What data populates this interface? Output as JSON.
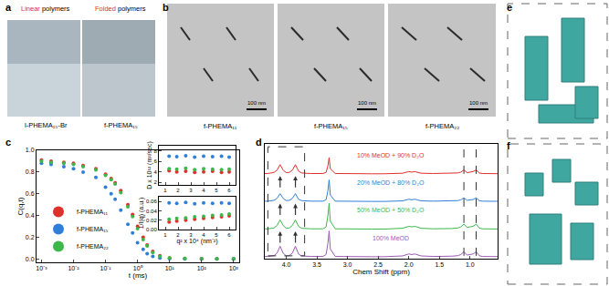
{
  "panel_labels": [
    "a",
    "b",
    "c",
    "d",
    "e",
    "f"
  ],
  "images": {
    "a": {
      "headers": [
        "Linear polymers",
        "Folded polymers"
      ],
      "captions": [
        "l-PHEMA₁₅-Br",
        "f-PHEMA₁₅"
      ]
    },
    "b": {
      "captions": [
        "f-PHEMA₁₁",
        "f-PHEMA₁₅",
        "f-PHEMA₂₂"
      ],
      "scale_bar": "100 nm"
    }
  },
  "chart_data": [
    {
      "type": "scatter",
      "log": "x",
      "x_label": "t (ms)",
      "y_label": "C(q,t)",
      "marker": "circle",
      "legend": "lower left",
      "grid": false,
      "xlim": [
        0.0007,
        1500
      ],
      "ylim": [
        -0.03,
        1.0
      ],
      "xticks": [
        {
          "value": 0.001,
          "label": "10⁻³"
        },
        {
          "value": 0.01,
          "label": "10⁻²"
        },
        {
          "value": 0.1,
          "label": "10⁻¹"
        },
        {
          "value": 1,
          "label": "10⁰"
        },
        {
          "value": 10,
          "label": "10¹"
        },
        {
          "value": 100,
          "label": "10²"
        },
        {
          "value": 1000,
          "label": "10³"
        }
      ],
      "yticks": [
        {
          "value": 0,
          "label": "0.0"
        },
        0.2,
        0.4,
        0.6,
        0.8,
        {
          "value": 1,
          "label": "1.0"
        }
      ],
      "x": [
        0.001,
        0.002,
        0.005,
        0.01,
        0.02,
        0.05,
        0.1,
        0.15,
        0.2,
        0.3,
        0.5,
        0.7,
        1,
        1.5,
        2,
        3,
        5,
        10,
        30,
        100,
        300,
        1000
      ],
      "series": [
        {
          "name": "f-PHEMA₁₁",
          "color": "#e0302a",
          "values": [
            0.91,
            0.9,
            0.89,
            0.88,
            0.86,
            0.83,
            0.78,
            0.74,
            0.7,
            0.63,
            0.5,
            0.41,
            0.3,
            0.2,
            0.13,
            0.07,
            0.03,
            0.01,
            0.005,
            0.003,
            0.002,
            0.002
          ]
        },
        {
          "name": "f-PHEMA₁₅",
          "color": "#2f7fd8",
          "values": [
            0.88,
            0.87,
            0.85,
            0.83,
            0.8,
            0.75,
            0.66,
            0.6,
            0.55,
            0.45,
            0.32,
            0.24,
            0.15,
            0.09,
            0.05,
            0.025,
            0.01,
            0.004,
            0.002,
            0.001,
            0.001,
            0.001
          ]
        },
        {
          "name": "f-PHEMA₂₂",
          "color": "#3cb84a",
          "values": [
            0.9,
            0.89,
            0.88,
            0.87,
            0.85,
            0.82,
            0.77,
            0.73,
            0.69,
            0.61,
            0.48,
            0.39,
            0.28,
            0.18,
            0.12,
            0.06,
            0.025,
            0.01,
            0.005,
            0.003,
            0.002,
            0.002
          ]
        }
      ]
    },
    {
      "type": "scatter",
      "y_label": "D x 10¹² (m²/sec)",
      "marker": "circle",
      "grid": false,
      "xlim": [
        0.5,
        6.5
      ],
      "ylim": [
        1.5,
        9
      ],
      "xticks": [
        1,
        2,
        3,
        4,
        5,
        6
      ],
      "yticks": [
        2,
        4,
        6,
        8
      ],
      "x": [
        1.3,
        1.9,
        2.6,
        3.3,
        4.0,
        4.7,
        5.4,
        6.0
      ],
      "series": [
        {
          "name": "f-PHEMA₁₁",
          "color": "#e0302a",
          "values": [
            4.2,
            4.0,
            4.1,
            3.9,
            4.0,
            4.1,
            3.9,
            4.0
          ]
        },
        {
          "name": "f-PHEMA₁₅",
          "color": "#2f7fd8",
          "values": [
            7.0,
            6.9,
            7.1,
            6.8,
            7.0,
            6.9,
            7.0,
            6.8
          ]
        },
        {
          "name": "f-PHEMA₂₂",
          "color": "#3cb84a",
          "values": [
            4.6,
            4.5,
            4.7,
            4.4,
            4.6,
            4.5,
            4.4,
            4.5
          ]
        }
      ]
    },
    {
      "type": "scatter",
      "x_label": "q² x 10⁴ (nm⁻²)",
      "y_label": "1/I(q) (a.u.)",
      "marker": "circle",
      "grid": false,
      "xlim": [
        0.5,
        6.5
      ],
      "ylim": [
        0,
        0.07
      ],
      "xticks": [
        1,
        2,
        3,
        4,
        5,
        6
      ],
      "yticks": [
        {
          "value": 0,
          "label": "0.00"
        },
        {
          "value": 0.02,
          "label": "0.02"
        },
        {
          "value": 0.04,
          "label": "0.04"
        },
        {
          "value": 0.06,
          "label": "0.06"
        }
      ],
      "x": [
        1.3,
        1.9,
        2.6,
        3.3,
        4.0,
        4.7,
        5.4,
        6.0
      ],
      "series": [
        {
          "name": "f-PHEMA₁₁",
          "color": "#e0302a",
          "values": [
            0.016,
            0.018,
            0.02,
            0.022,
            0.024,
            0.026,
            0.027,
            0.029
          ]
        },
        {
          "name": "f-PHEMA₁₅",
          "color": "#2f7fd8",
          "values": [
            0.057,
            0.056,
            0.058,
            0.055,
            0.057,
            0.056,
            0.057,
            0.056
          ]
        },
        {
          "name": "f-PHEMA₂₂",
          "color": "#3cb84a",
          "values": [
            0.022,
            0.024,
            0.025,
            0.027,
            0.028,
            0.03,
            0.031,
            0.033
          ]
        }
      ]
    },
    {
      "type": "line",
      "x_label": "Chem Shift (ppm)",
      "line_style": "solid",
      "tick_labels": "x",
      "grid": false,
      "xlim": [
        4.35,
        0.55
      ],
      "ylim": [
        -0.05,
        4.1
      ],
      "xticks": [
        {
          "value": 4,
          "label": "4.0"
        },
        3.5,
        {
          "value": 3,
          "label": "3.0"
        },
        2.5,
        {
          "value": 2,
          "label": "2.0"
        },
        1.5,
        {
          "value": 1,
          "label": "1.0"
        }
      ],
      "box_shifts": [
        4.3,
        3.7
      ],
      "dashed_lines": [
        1.1,
        0.9
      ],
      "arrows_at": [
        4.1,
        3.85
      ],
      "x": [
        4.5,
        4.3,
        4.2,
        4.15,
        4.1,
        4.05,
        4.0,
        3.95,
        3.9,
        3.85,
        3.8,
        3.75,
        3.6,
        3.4,
        3.35,
        3.32,
        3.3,
        3.28,
        3.2,
        3.0,
        2.8,
        2.6,
        2.4,
        2.2,
        2.1,
        2.0,
        1.95,
        1.9,
        1.8,
        1.6,
        1.4,
        1.3,
        1.2,
        1.15,
        1.1,
        1.05,
        1.0,
        0.95,
        0.9,
        0.85,
        0.8,
        0.6,
        0.4
      ],
      "series": [
        {
          "name": "10% MeOD + 90% D₂O",
          "color": "#e0302a",
          "values": [
            3.02,
            3.03,
            3.07,
            3.15,
            3.35,
            3.15,
            3.06,
            3.07,
            3.15,
            3.35,
            3.12,
            3.05,
            3.03,
            3.03,
            3.07,
            3.3,
            3.6,
            3.2,
            3.03,
            3.02,
            3.02,
            3.02,
            3.02,
            3.03,
            3.04,
            3.1,
            3.08,
            3.1,
            3.04,
            3.03,
            3.03,
            3.04,
            3.05,
            3.08,
            3.16,
            3.06,
            3.08,
            3.1,
            3.16,
            3.05,
            3.03,
            3.02,
            3.02
          ]
        },
        {
          "name": "20% MeOD + 80% D₂O",
          "color": "#2f7fd8",
          "values": [
            2.02,
            2.03,
            2.06,
            2.13,
            2.3,
            2.13,
            2.05,
            2.06,
            2.13,
            2.3,
            2.1,
            2.05,
            2.03,
            2.03,
            2.08,
            2.4,
            2.8,
            2.25,
            2.03,
            2.02,
            2.02,
            2.02,
            2.02,
            2.03,
            2.04,
            2.1,
            2.08,
            2.1,
            2.04,
            2.03,
            2.03,
            2.04,
            2.05,
            2.08,
            2.15,
            2.06,
            2.08,
            2.09,
            2.15,
            2.05,
            2.03,
            2.02,
            2.02
          ]
        },
        {
          "name": "50% MeOD + 50% D₂O",
          "color": "#3cb84a",
          "values": [
            1.02,
            1.03,
            1.06,
            1.15,
            1.35,
            1.15,
            1.05,
            1.06,
            1.15,
            1.35,
            1.12,
            1.05,
            1.03,
            1.03,
            1.1,
            1.5,
            1.95,
            1.3,
            1.03,
            1.02,
            1.02,
            1.02,
            1.02,
            1.03,
            1.05,
            1.12,
            1.1,
            1.12,
            1.05,
            1.03,
            1.03,
            1.04,
            1.06,
            1.1,
            1.2,
            1.08,
            1.1,
            1.12,
            1.2,
            1.06,
            1.03,
            1.02,
            1.02
          ]
        },
        {
          "name": "100% MeOD",
          "color": "#9b59b6",
          "values": [
            0.02,
            0.03,
            0.06,
            0.15,
            0.4,
            0.15,
            0.05,
            0.06,
            0.15,
            0.4,
            0.12,
            0.05,
            0.03,
            0.03,
            0.1,
            0.5,
            0.95,
            0.3,
            0.03,
            0.02,
            0.02,
            0.02,
            0.02,
            0.03,
            0.05,
            0.12,
            0.1,
            0.12,
            0.05,
            0.03,
            0.03,
            0.04,
            0.06,
            0.1,
            0.2,
            0.08,
            0.1,
            0.12,
            0.2,
            0.06,
            0.03,
            0.02,
            0.02
          ]
        }
      ]
    }
  ]
}
